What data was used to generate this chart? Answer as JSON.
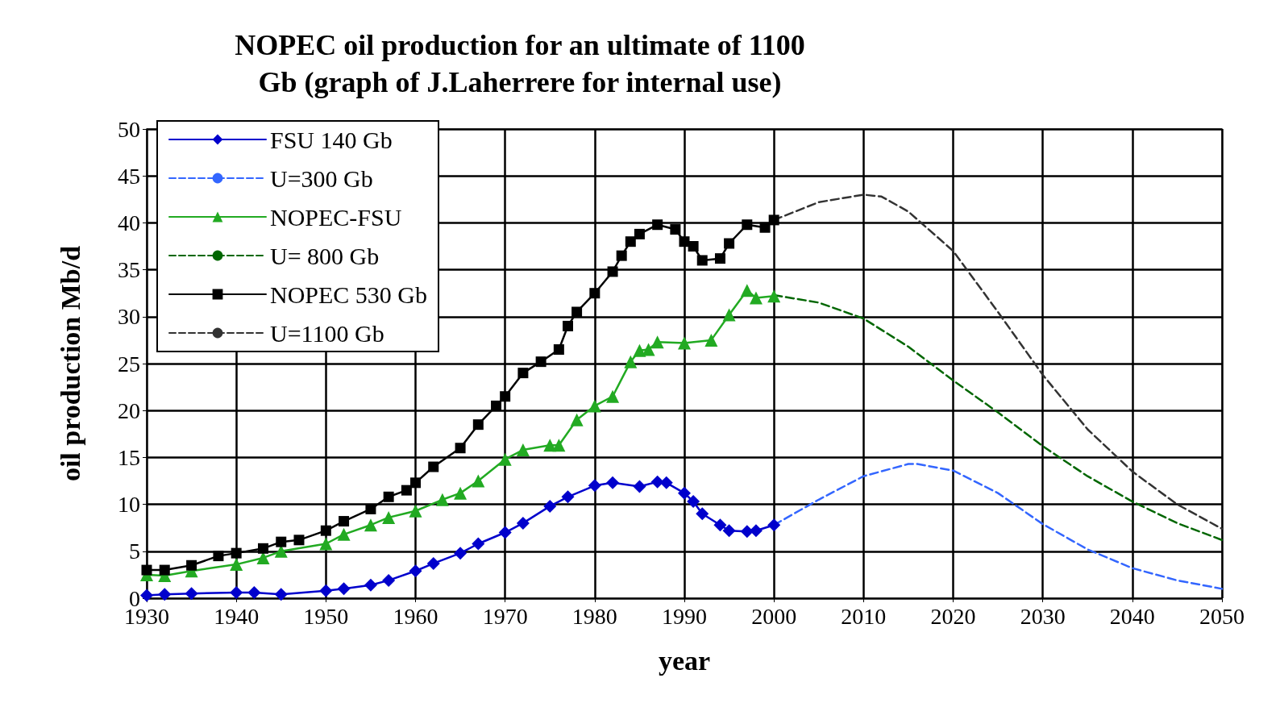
{
  "chart_data": {
    "type": "line",
    "title": "NOPEC oil production for an ultimate of 1100\nGb (graph of J.Laherrere for internal use)",
    "xlabel": "year",
    "ylabel": "oil production Mb/d",
    "xlim": [
      1930,
      2050
    ],
    "xticks": [
      1930,
      1940,
      1950,
      1960,
      1970,
      1980,
      1990,
      2000,
      2010,
      2020,
      2030,
      2040,
      2050
    ],
    "ylim": [
      0,
      50
    ],
    "yticks": [
      0,
      5,
      10,
      15,
      20,
      25,
      30,
      35,
      40,
      45,
      50
    ],
    "grid": true,
    "legend": "top left",
    "series": [
      {
        "name": "FSU 140 Gb",
        "color": "#0000cc",
        "marker": "diamond",
        "line_style": "solid",
        "x": [
          1930,
          1932,
          1935,
          1940,
          1942,
          1945,
          1950,
          1952,
          1955,
          1957,
          1960,
          1962,
          1965,
          1967,
          1970,
          1972,
          1975,
          1977,
          1980,
          1982,
          1985,
          1987,
          1988,
          1990,
          1991,
          1992,
          1994,
          1995,
          1997,
          1998,
          2000
        ],
        "values": [
          0.3,
          0.4,
          0.5,
          0.6,
          0.6,
          0.4,
          0.8,
          1.0,
          1.4,
          1.9,
          2.9,
          3.7,
          4.8,
          5.8,
          7.0,
          8.0,
          9.8,
          10.8,
          12.0,
          12.3,
          11.9,
          12.4,
          12.3,
          11.2,
          10.3,
          9.0,
          7.8,
          7.2,
          7.1,
          7.2,
          7.8
        ]
      },
      {
        "name": "U=300 Gb",
        "color": "#3366ff",
        "marker": "none",
        "line_style": "dashed",
        "x": [
          2000,
          2005,
          2010,
          2015,
          2016,
          2020,
          2025,
          2030,
          2035,
          2040,
          2045,
          2050
        ],
        "values": [
          7.8,
          10.5,
          13.0,
          14.3,
          14.3,
          13.6,
          11.2,
          7.9,
          5.2,
          3.2,
          1.9,
          1.0
        ]
      },
      {
        "name": "NOPEC-FSU",
        "color": "#22aa22",
        "marker": "triangle",
        "line_style": "solid",
        "x": [
          1930,
          1932,
          1935,
          1940,
          1943,
          1945,
          1950,
          1952,
          1955,
          1957,
          1960,
          1963,
          1965,
          1967,
          1970,
          1972,
          1975,
          1976,
          1978,
          1980,
          1982,
          1984,
          1985,
          1986,
          1987,
          1990,
          1993,
          1995,
          1997,
          1998,
          2000
        ],
        "values": [
          2.5,
          2.4,
          2.9,
          3.6,
          4.3,
          5.0,
          5.8,
          6.8,
          7.8,
          8.6,
          9.3,
          10.5,
          11.2,
          12.5,
          14.8,
          15.8,
          16.3,
          16.3,
          19.0,
          20.5,
          21.5,
          25.2,
          26.4,
          26.5,
          27.3,
          27.2,
          27.5,
          30.2,
          32.8,
          32.0,
          32.2
        ]
      },
      {
        "name": "U= 800 Gb",
        "color": "#006600",
        "marker": "none",
        "line_style": "dashed",
        "x": [
          2000,
          2005,
          2010,
          2015,
          2020,
          2025,
          2030,
          2035,
          2040,
          2045,
          2050
        ],
        "values": [
          32.3,
          31.5,
          29.8,
          26.8,
          23.2,
          19.8,
          16.2,
          13.0,
          10.3,
          8.0,
          6.2
        ]
      },
      {
        "name": "NOPEC 530 Gb",
        "color": "#000000",
        "marker": "square",
        "line_style": "solid",
        "x": [
          1930,
          1932,
          1935,
          1938,
          1940,
          1943,
          1945,
          1947,
          1950,
          1952,
          1955,
          1957,
          1959,
          1960,
          1962,
          1965,
          1967,
          1969,
          1970,
          1972,
          1974,
          1976,
          1977,
          1978,
          1980,
          1982,
          1983,
          1984,
          1985,
          1987,
          1989,
          1990,
          1991,
          1992,
          1994,
          1995,
          1997,
          1999,
          2000
        ],
        "values": [
          3.0,
          3.0,
          3.5,
          4.5,
          4.8,
          5.3,
          6.0,
          6.2,
          7.2,
          8.2,
          9.5,
          10.8,
          11.5,
          12.3,
          14.0,
          16.0,
          18.5,
          20.5,
          21.5,
          24.0,
          25.2,
          26.5,
          29.0,
          30.5,
          32.5,
          34.8,
          36.5,
          38.0,
          38.8,
          39.8,
          39.3,
          38.0,
          37.5,
          36.0,
          36.2,
          37.8,
          39.8,
          39.5,
          40.3
        ]
      },
      {
        "name": "U=1100 Gb",
        "color": "#333333",
        "marker": "none",
        "line_style": "dashed",
        "x": [
          2000,
          2005,
          2010,
          2012,
          2015,
          2020,
          2025,
          2030,
          2035,
          2040,
          2045,
          2050
        ],
        "values": [
          40.3,
          42.2,
          43.0,
          42.8,
          41.2,
          37.0,
          30.5,
          23.8,
          18.0,
          13.5,
          10.0,
          7.4
        ]
      }
    ]
  }
}
